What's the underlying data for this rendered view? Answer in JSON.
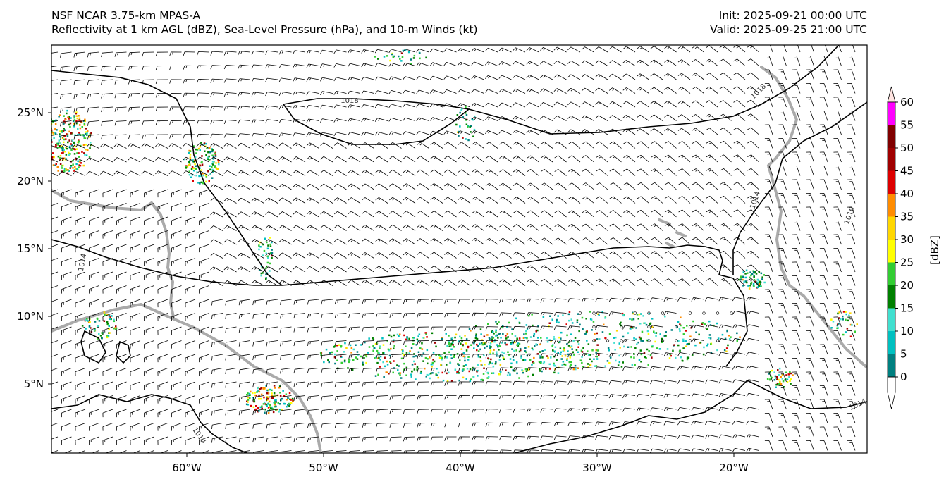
{
  "header": {
    "title_line1": "NSF NCAR 3.75-km MPAS-A",
    "title_line2": "Reflectivity at 1 km AGL (dBZ), Sea-Level Pressure (hPa), and 10-m Winds (kt)",
    "init": "Init: 2025-09-21 00:00 UTC",
    "valid": "Valid: 2025-09-25 21:00 UTC"
  },
  "map": {
    "lon_ticks": [
      "60°W",
      "50°W",
      "40°W",
      "30°W",
      "20°W"
    ],
    "lat_ticks": [
      "25°N",
      "20°N",
      "15°N",
      "10°N",
      "5°N"
    ],
    "isobar_labels": [
      "1018",
      "1018",
      "1014",
      "1010",
      "1014",
      "1014",
      "1014"
    ],
    "colors": {
      "isobar": "#000000",
      "coastline": "#aaaaaa",
      "barb": "#000000"
    }
  },
  "colorbar": {
    "label": "[dBZ]",
    "ticks": [
      "0",
      "5",
      "10",
      "15",
      "20",
      "25",
      "30",
      "35",
      "40",
      "45",
      "50",
      "55",
      "60"
    ],
    "colors": [
      "#ffffff",
      "#008080",
      "#00c0c0",
      "#40e0d0",
      "#008000",
      "#32cd32",
      "#ffff00",
      "#ffd700",
      "#ff8c00",
      "#dd0000",
      "#a00000",
      "#800000",
      "#ff00ff",
      "#ffe4e1"
    ]
  }
}
